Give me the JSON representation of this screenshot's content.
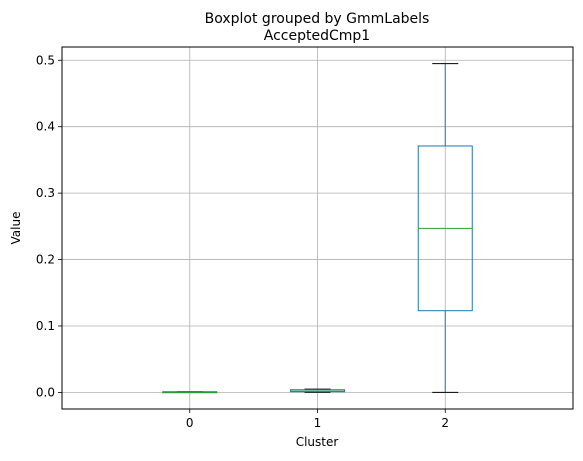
{
  "chart_data": {
    "type": "box",
    "suptitle": "Boxplot grouped by GmmLabels",
    "title": "AcceptedCmp1",
    "xlabel": "Cluster",
    "ylabel": "Value",
    "categories": [
      "0",
      "1",
      "2"
    ],
    "ylim": [
      -0.025,
      0.52
    ],
    "yticks": [
      0.0,
      0.1,
      0.2,
      0.3,
      0.4,
      0.5
    ],
    "ytick_labels": [
      "0.0",
      "0.1",
      "0.2",
      "0.3",
      "0.4",
      "0.5"
    ],
    "grid": true,
    "boxes": [
      {
        "category": "0",
        "whisker_low": 0.0,
        "q1": 0.0,
        "median": 0.0,
        "q3": 0.001,
        "whisker_high": 0.001
      },
      {
        "category": "1",
        "whisker_low": 0.0,
        "q1": 0.001,
        "median": 0.002,
        "q3": 0.004,
        "whisker_high": 0.005
      },
      {
        "category": "2",
        "whisker_low": 0.0,
        "q1": 0.123,
        "median": 0.247,
        "q3": 0.371,
        "whisker_high": 0.495
      }
    ],
    "colors": {
      "box": "#1f77b4",
      "median": "#2ca02c",
      "whisker": "#1f77b4",
      "cap": "#000000",
      "grid": "#b0b0b0"
    }
  }
}
